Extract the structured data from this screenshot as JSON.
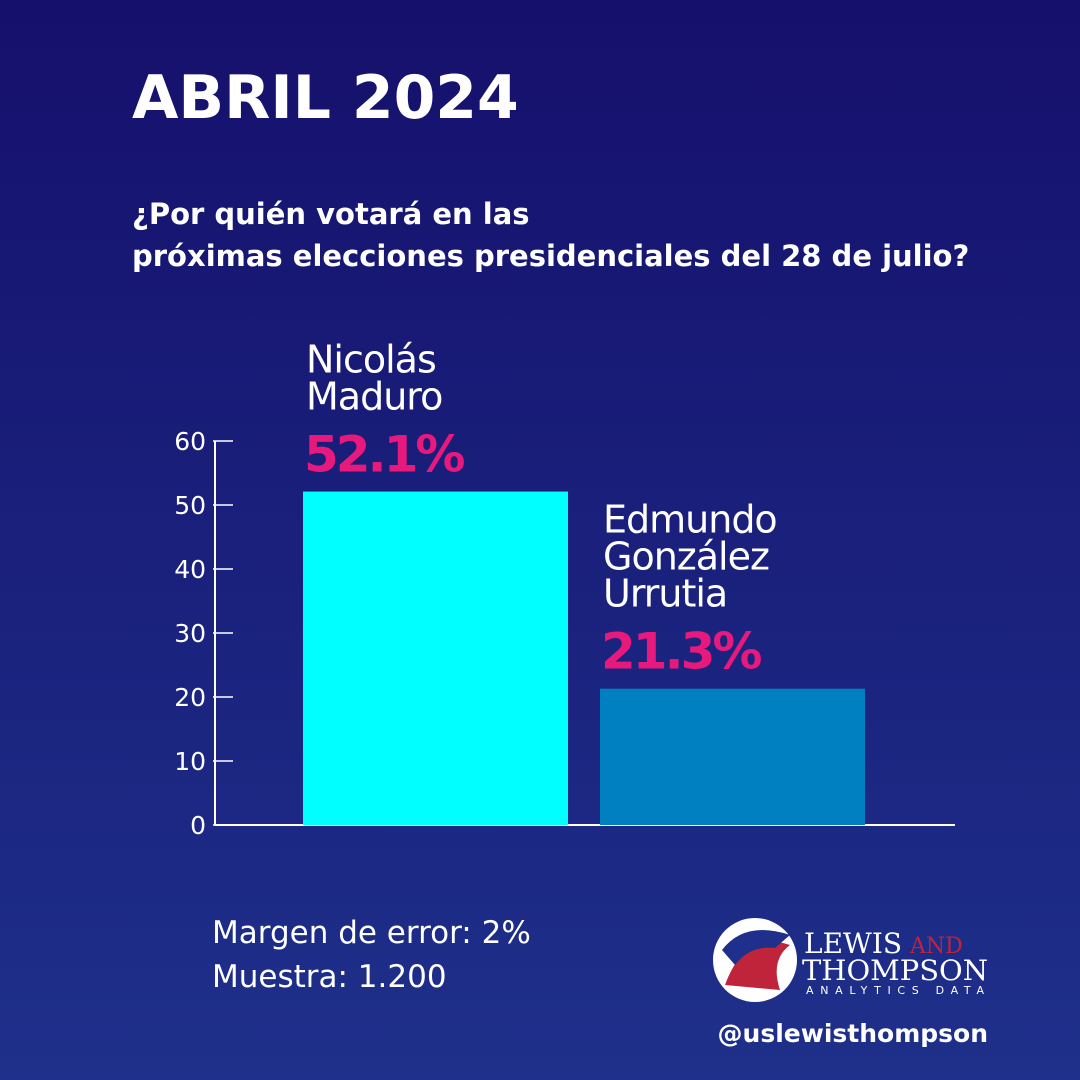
{
  "chart_data": {
    "type": "bar",
    "title": "ABRIL 2024",
    "subtitle": "¿Por quién votará en las próximas elecciones presidenciales del 28 de julio?",
    "categories": [
      "Nicolás Maduro",
      "Edmundo González Urrutia"
    ],
    "values": [
      52.1,
      21.3
    ],
    "value_labels": [
      "52.1%",
      "21.3%"
    ],
    "colors": [
      "#00ffff",
      "#0080c0"
    ],
    "value_label_color": "#e8197d",
    "ylim": [
      0,
      60
    ],
    "yticks": [
      0,
      10,
      20,
      30,
      40,
      50,
      60
    ],
    "grid": false
  },
  "footer": {
    "notes": [
      "Margen de error: 2%",
      "Muestra: 1.200"
    ],
    "handle": "@uslewisthompson"
  },
  "brand": {
    "name_1": "LEWIS",
    "name_and": "AND",
    "name_2": "THOMPSON",
    "tagline": "ANALYTICS DATA"
  }
}
